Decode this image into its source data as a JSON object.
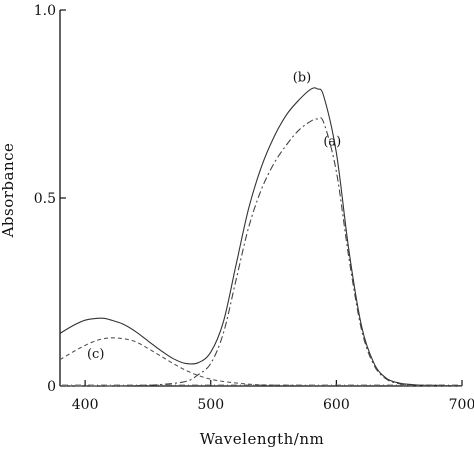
{
  "chart_data": {
    "type": "line",
    "xlabel": "Wavelength/nm",
    "ylabel": "Absorbance",
    "xlim": [
      380,
      700
    ],
    "ylim": [
      0,
      1.0
    ],
    "x_ticks": [
      400,
      500,
      600,
      700
    ],
    "x_tick_labels": [
      "400",
      "500",
      "600",
      "700"
    ],
    "y_ticks": [
      0,
      0.5,
      1.0
    ],
    "y_tick_labels": [
      "0",
      "0.5",
      "1.0"
    ],
    "grid": false,
    "series": [
      {
        "name": "(b)",
        "color": "#333333",
        "dash": "solid",
        "x": [
          380,
          390,
          400,
          410,
          415,
          420,
          430,
          440,
          450,
          460,
          470,
          480,
          490,
          500,
          510,
          520,
          530,
          540,
          550,
          560,
          570,
          580,
          585,
          590,
          600,
          610,
          620,
          630,
          640,
          650,
          660,
          670,
          680,
          690,
          700
        ],
        "y": [
          0.14,
          0.16,
          0.175,
          0.18,
          0.18,
          0.176,
          0.165,
          0.145,
          0.12,
          0.095,
          0.073,
          0.06,
          0.062,
          0.09,
          0.17,
          0.32,
          0.47,
          0.58,
          0.66,
          0.72,
          0.76,
          0.79,
          0.79,
          0.77,
          0.62,
          0.36,
          0.16,
          0.06,
          0.02,
          0.008,
          0.004,
          0.002,
          0.002,
          0.001,
          0.001
        ]
      },
      {
        "name": "(a)",
        "color": "#444444",
        "dash": "dashdot",
        "x": [
          380,
          400,
          420,
          440,
          460,
          480,
          490,
          500,
          510,
          520,
          530,
          540,
          550,
          560,
          570,
          580,
          585,
          590,
          600,
          610,
          620,
          630,
          640,
          650,
          660,
          670,
          680,
          690,
          700
        ],
        "y": [
          0,
          0,
          0,
          0.001,
          0.004,
          0.012,
          0.03,
          0.06,
          0.14,
          0.28,
          0.42,
          0.52,
          0.59,
          0.64,
          0.68,
          0.705,
          0.71,
          0.7,
          0.57,
          0.34,
          0.15,
          0.055,
          0.018,
          0.006,
          0.003,
          0.002,
          0.001,
          0.001,
          0.001
        ]
      },
      {
        "name": "(c)",
        "color": "#555555",
        "dash": "dashed",
        "x": [
          380,
          390,
          400,
          410,
          420,
          430,
          440,
          450,
          460,
          470,
          480,
          490,
          500,
          510,
          520,
          530,
          540,
          560,
          580,
          600,
          620,
          650,
          700
        ],
        "y": [
          0.07,
          0.09,
          0.108,
          0.122,
          0.128,
          0.126,
          0.118,
          0.1,
          0.08,
          0.06,
          0.042,
          0.028,
          0.018,
          0.012,
          0.008,
          0.005,
          0.003,
          0.002,
          0.001,
          0.001,
          0.001,
          0.001,
          0
        ]
      }
    ]
  }
}
